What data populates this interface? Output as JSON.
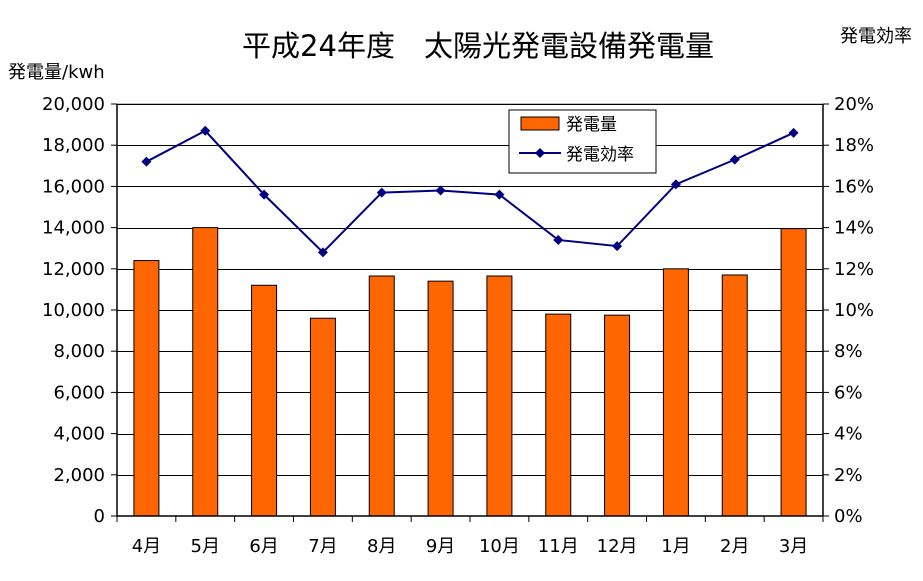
{
  "chart_data": {
    "type": "bar",
    "title": "平成24年度　太陽光発電設備発電量",
    "ylabel": "発電量/kwh",
    "y2label": "発電効率",
    "categories": [
      "4月",
      "5月",
      "6月",
      "7月",
      "8月",
      "9月",
      "10月",
      "11月",
      "12月",
      "1月",
      "2月",
      "3月"
    ],
    "series": [
      {
        "name": "発電量",
        "type": "bar",
        "axis": "left",
        "color": "#ff6600",
        "values": [
          12400,
          14000,
          11200,
          9600,
          11650,
          11400,
          11650,
          9800,
          9750,
          12000,
          11700,
          13950
        ]
      },
      {
        "name": "発電効率",
        "type": "line",
        "axis": "right",
        "color": "#000080",
        "marker": "diamond",
        "values": [
          17.2,
          18.7,
          15.6,
          12.8,
          15.7,
          15.8,
          15.6,
          13.4,
          13.1,
          16.1,
          17.3,
          18.6
        ]
      }
    ],
    "ylim": [
      0,
      20000
    ],
    "y2lim": [
      0,
      20
    ],
    "yticks": [
      "0",
      "2,000",
      "4,000",
      "6,000",
      "8,000",
      "10,000",
      "12,000",
      "14,000",
      "16,000",
      "18,000",
      "20,000"
    ],
    "y2ticks": [
      "0%",
      "2%",
      "4%",
      "6%",
      "8%",
      "10%",
      "12%",
      "14%",
      "16%",
      "18%",
      "20%"
    ],
    "grid": true,
    "legend": "top-right"
  }
}
